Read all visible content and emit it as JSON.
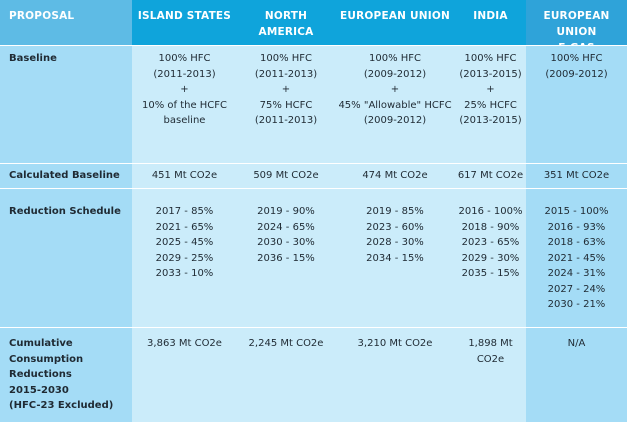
{
  "columns": [
    "PROPOSAL",
    "ISLAND STATES",
    "NORTH AMERICA",
    "EUROPEAN UNION",
    "INDIA",
    "EUROPEAN UNION\nF-GAS REGULATION"
  ],
  "columns_split": {
    "c0": "PROPOSAL",
    "c1": "ISLAND STATES",
    "c2": "NORTH AMERICA",
    "c3": "EUROPEAN UNION",
    "c4": "INDIA",
    "c5_line1": "EUROPEAN UNION",
    "c5_line2": "F-GAS REGULATION"
  },
  "rows": {
    "baseline": {
      "label": "Baseline",
      "island": [
        "100% HFC",
        "(2011-2013)",
        "+",
        "10% of the HCFC",
        "baseline"
      ],
      "na": [
        "100% HFC",
        "(2011-2013)",
        "+",
        "75% HCFC",
        "(2011-2013)"
      ],
      "eu": [
        "100% HFC",
        "(2009-2012)",
        "+",
        "45% \"Allowable\" HCFC",
        "(2009-2012)"
      ],
      "india": [
        "100% HFC",
        "(2013-2015)",
        "+",
        "25% HCFC",
        "(2013-2015)"
      ],
      "fgas": [
        "100% HFC",
        "(2009-2012)"
      ]
    },
    "calculated": {
      "label": "Calculated Baseline",
      "island": "451 Mt CO2e",
      "na": "509 Mt CO2e",
      "eu": "474 Mt CO2e",
      "india": "617 Mt CO2e",
      "fgas": "351 Mt CO2e"
    },
    "reduction": {
      "label": "Reduction Schedule",
      "island": [
        "2017 - 85%",
        "2021 - 65%",
        "2025 - 45%",
        "2029 - 25%",
        "2033 - 10%"
      ],
      "na": [
        "2019 - 90%",
        "2024 - 65%",
        "2030 - 30%",
        "2036 - 15%"
      ],
      "eu": [
        "2019 - 85%",
        "2023 - 60%",
        "2028 - 30%",
        "2034 - 15%"
      ],
      "india": [
        "2016 - 100%",
        "2018 - 90%",
        "2023 - 65%",
        "2029 - 30%",
        "2035 - 15%"
      ],
      "fgas": [
        "2015 - 100%",
        "2016 - 93%",
        "2018 - 63%",
        "2021 - 45%",
        "2024 - 31%",
        "2027 - 24%",
        "2030 - 21%"
      ]
    },
    "cumulative": {
      "label": [
        "Cumulative Consumption",
        "Reductions",
        "2015-2030",
        "(HFC-23 Excluded)"
      ],
      "island": "3,863 Mt CO2e",
      "na": "2,245 Mt CO2e",
      "eu": "3,210 Mt CO2e",
      "india": "1,898 Mt CO2e",
      "fgas": "N/A"
    }
  }
}
